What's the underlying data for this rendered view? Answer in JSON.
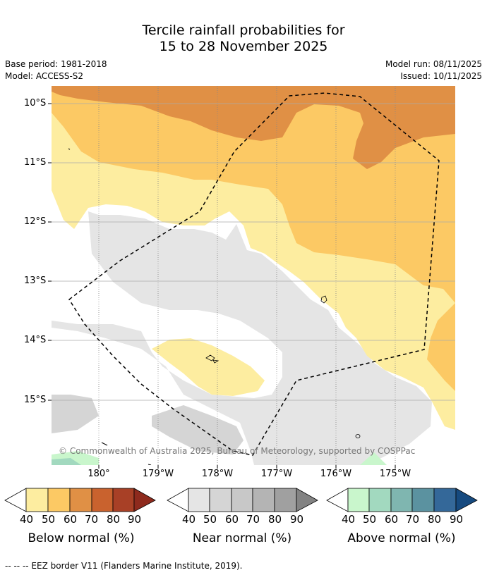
{
  "title_line1": "Tercile rainfall probabilities for",
  "title_line2": "15 to 28 November 2025",
  "base_period": "Base period: 1981-2018",
  "model": "Model: ACCESS-S2",
  "model_run": "Model run: 08/11/2025",
  "issued": "Issued: 10/11/2025",
  "lat_labels": [
    "10°S",
    "11°S",
    "12°S",
    "13°S",
    "14°S",
    "15°S"
  ],
  "lon_labels": [
    "180°",
    "179°W",
    "178°W",
    "177°W",
    "176°W",
    "175°W"
  ],
  "copyright": "© Commonwealth of Australia 2025, Bureau of Meteorology, supported by COSPPac",
  "colorbars": [
    {
      "title": "Below normal (%)",
      "ticks": [
        "40",
        "50",
        "60",
        "70",
        "80",
        "90"
      ],
      "colors": [
        "#fdeda0",
        "#fcc964",
        "#e09045",
        "#c9622e",
        "#a84026",
        "#8e2a1d"
      ]
    },
    {
      "title": "Near normal (%)",
      "ticks": [
        "40",
        "50",
        "60",
        "70",
        "80",
        "90"
      ],
      "colors": [
        "#e5e5e5",
        "#d5d5d5",
        "#c8c8c8",
        "#b4b4b4",
        "#a0a0a0",
        "#838383"
      ]
    },
    {
      "title": "Above normal (%)",
      "ticks": [
        "40",
        "50",
        "60",
        "70",
        "80",
        "90"
      ],
      "colors": [
        "#c9f6cc",
        "#a2d9bf",
        "#7fb6b0",
        "#5b92a0",
        "#346899",
        "#164a7f"
      ]
    }
  ],
  "footer": "--  --  -- EEZ border V11 (Flanders Marine Institute, 2019).",
  "colors": {
    "below_40": "#fdeda0",
    "below_50": "#fcc964",
    "below_60": "#e09045",
    "near_40": "#e5e5e5",
    "near_50": "#d5d5d5",
    "above_40": "#c9f6cc",
    "above_50": "#a2d9bf"
  }
}
